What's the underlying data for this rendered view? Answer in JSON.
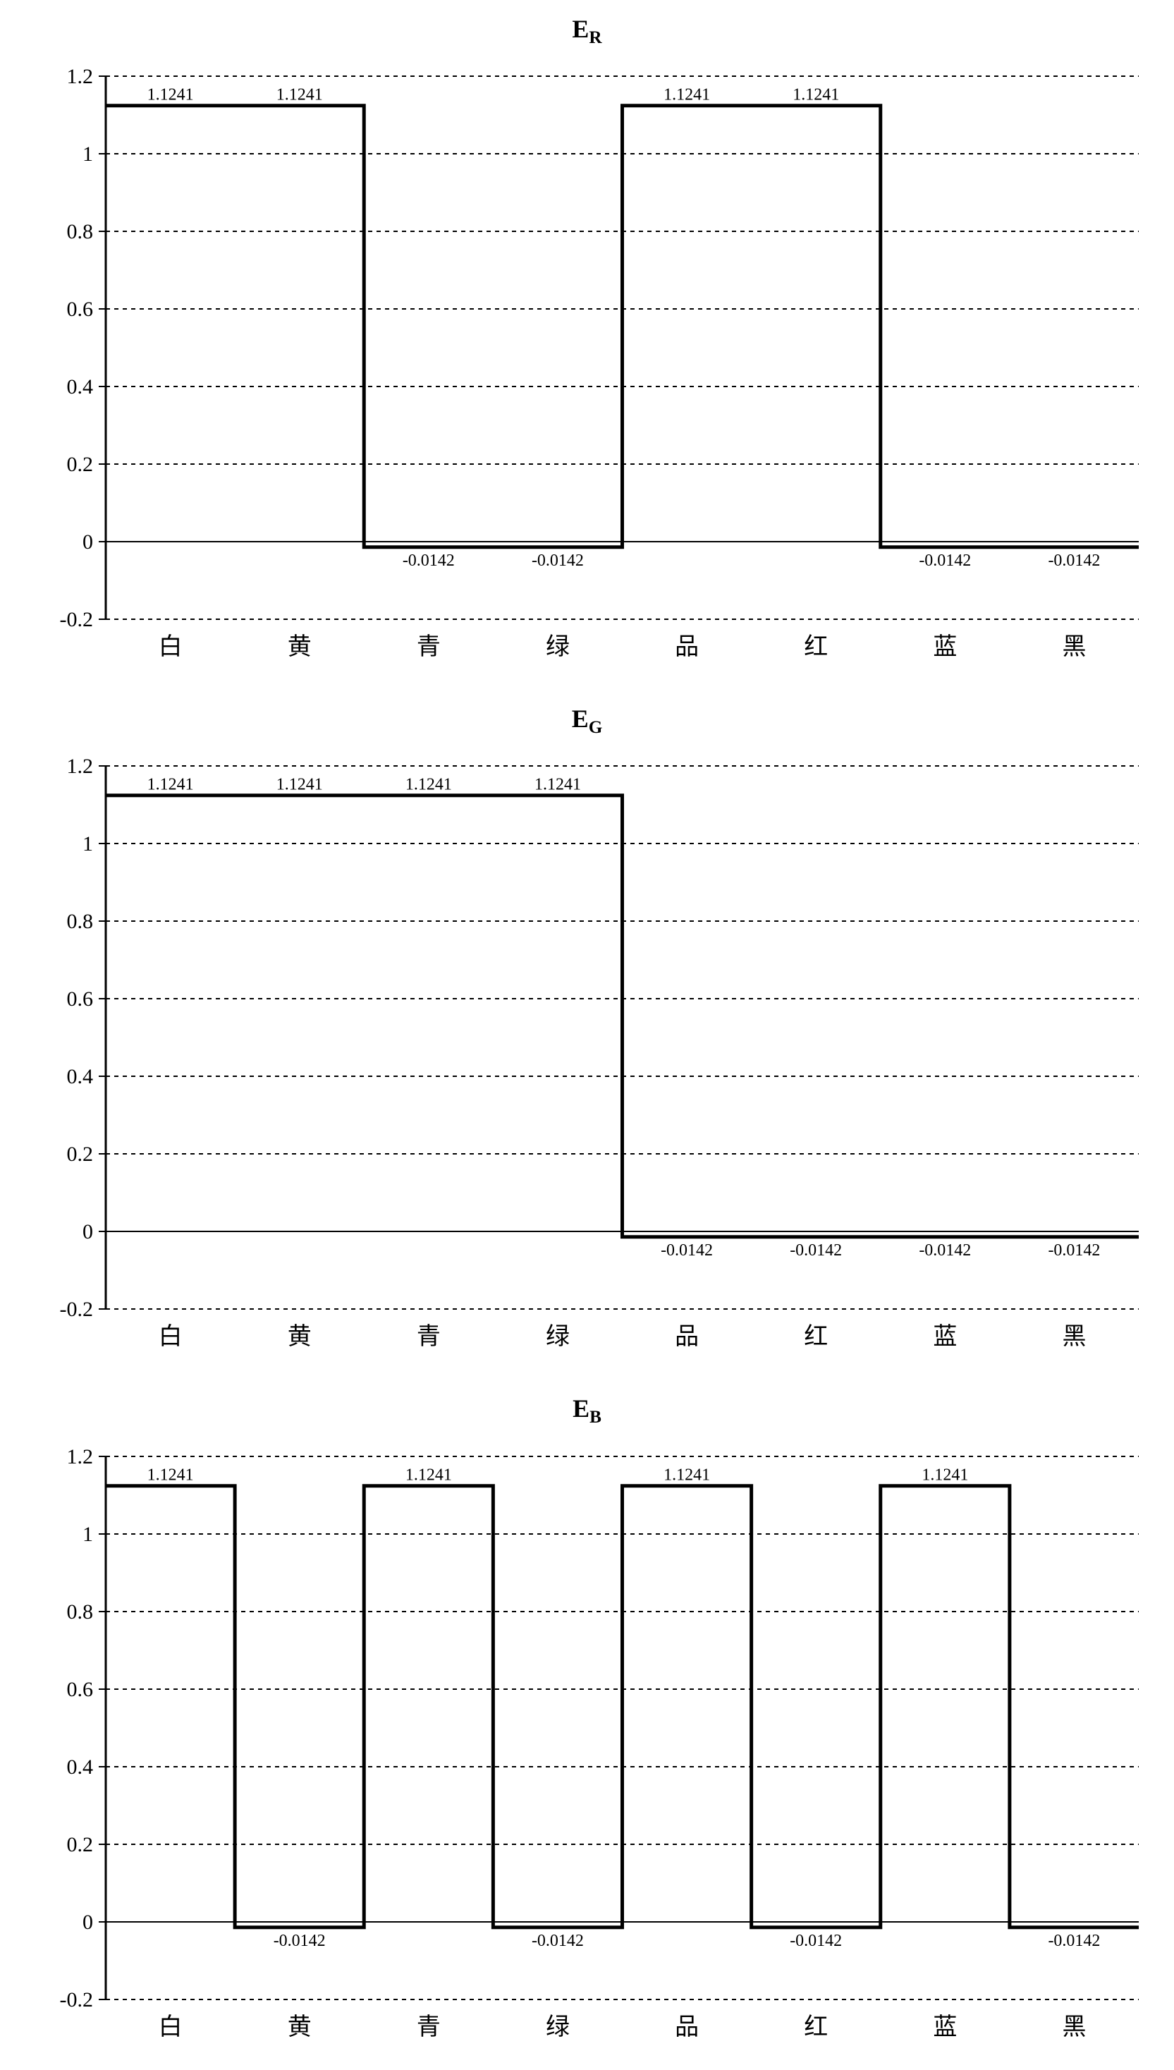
{
  "global": {
    "categories": [
      "白",
      "黄",
      "青",
      "绿",
      "品",
      "红",
      "蓝",
      "黑"
    ],
    "ylim": [
      -0.2,
      1.2
    ],
    "yticks": [
      -0.2,
      0,
      0.2,
      0.4,
      0.6,
      0.8,
      1,
      1.2
    ],
    "high_value": 1.1241,
    "low_value": -0.0142,
    "high_label": "1.1241",
    "low_label": "-0.0142",
    "line_color": "#000000",
    "line_width": 5,
    "grid_color": "#000000",
    "grid_dash": "6,6",
    "axis_color": "#000000",
    "background": "#ffffff",
    "tick_fontsize": 30,
    "category_fontsize": 34,
    "datalabel_fontsize": 24,
    "title_fontsize": 36
  },
  "charts": [
    {
      "id": "ER",
      "title_main": "E",
      "title_sub": "R",
      "values": [
        1.1241,
        1.1241,
        -0.0142,
        -0.0142,
        1.1241,
        1.1241,
        -0.0142,
        -0.0142
      ]
    },
    {
      "id": "EG",
      "title_main": "E",
      "title_sub": "G",
      "values": [
        1.1241,
        1.1241,
        1.1241,
        1.1241,
        -0.0142,
        -0.0142,
        -0.0142,
        -0.0142
      ]
    },
    {
      "id": "EB",
      "title_main": "E",
      "title_sub": "B",
      "values": [
        1.1241,
        -0.0142,
        1.1241,
        -0.0142,
        1.1241,
        -0.0142,
        1.1241,
        -0.0142
      ]
    }
  ]
}
